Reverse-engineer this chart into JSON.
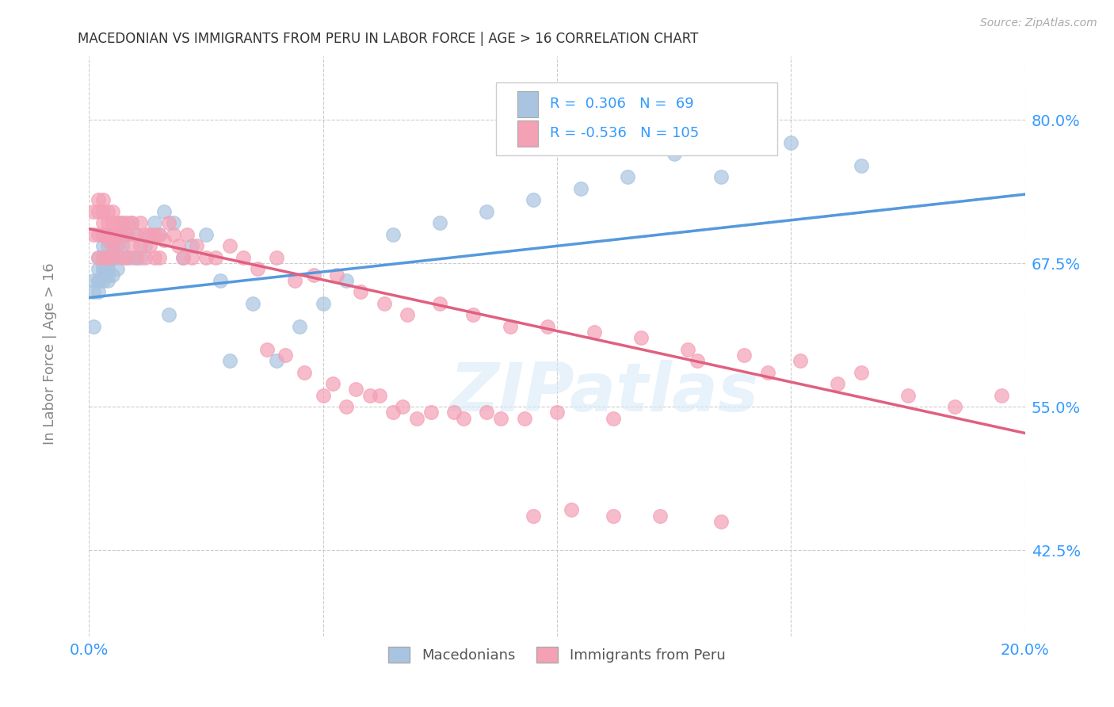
{
  "title": "MACEDONIAN VS IMMIGRANTS FROM PERU IN LABOR FORCE | AGE > 16 CORRELATION CHART",
  "source": "Source: ZipAtlas.com",
  "ylabel": "In Labor Force | Age > 16",
  "xlim": [
    0.0,
    0.2
  ],
  "ylim": [
    0.35,
    0.855
  ],
  "yticks": [
    0.425,
    0.55,
    0.675,
    0.8
  ],
  "ytick_labels": [
    "42.5%",
    "55.0%",
    "67.5%",
    "80.0%"
  ],
  "xticks": [
    0.0,
    0.05,
    0.1,
    0.15,
    0.2
  ],
  "xtick_labels": [
    "0.0%",
    "",
    "",
    "",
    "20.0%"
  ],
  "blue_R": 0.306,
  "blue_N": 69,
  "pink_R": -0.536,
  "pink_N": 105,
  "blue_color": "#a8c4e0",
  "pink_color": "#f4a0b5",
  "blue_line_color": "#5599dd",
  "pink_line_color": "#e06080",
  "watermark": "ZIPatlas",
  "blue_line_x0": 0.0,
  "blue_line_x1": 0.2,
  "blue_line_y0": 0.645,
  "blue_line_y1": 0.735,
  "pink_line_x0": 0.0,
  "pink_line_x1": 0.2,
  "pink_line_y0": 0.705,
  "pink_line_y1": 0.527,
  "blue_scatter_x": [
    0.001,
    0.001,
    0.001,
    0.002,
    0.002,
    0.002,
    0.002,
    0.002,
    0.003,
    0.003,
    0.003,
    0.003,
    0.003,
    0.003,
    0.003,
    0.003,
    0.004,
    0.004,
    0.004,
    0.004,
    0.004,
    0.004,
    0.004,
    0.005,
    0.005,
    0.005,
    0.005,
    0.005,
    0.006,
    0.006,
    0.006,
    0.006,
    0.007,
    0.007,
    0.007,
    0.008,
    0.008,
    0.009,
    0.009,
    0.01,
    0.01,
    0.011,
    0.012,
    0.013,
    0.014,
    0.015,
    0.016,
    0.017,
    0.018,
    0.02,
    0.022,
    0.025,
    0.028,
    0.03,
    0.035,
    0.04,
    0.045,
    0.05,
    0.055,
    0.065,
    0.075,
    0.085,
    0.095,
    0.105,
    0.115,
    0.125,
    0.135,
    0.15,
    0.165
  ],
  "blue_scatter_y": [
    0.65,
    0.66,
    0.62,
    0.66,
    0.67,
    0.66,
    0.68,
    0.65,
    0.665,
    0.67,
    0.68,
    0.69,
    0.66,
    0.67,
    0.68,
    0.7,
    0.66,
    0.67,
    0.68,
    0.69,
    0.7,
    0.665,
    0.675,
    0.665,
    0.68,
    0.69,
    0.7,
    0.68,
    0.67,
    0.68,
    0.69,
    0.7,
    0.69,
    0.7,
    0.71,
    0.68,
    0.7,
    0.68,
    0.71,
    0.68,
    0.7,
    0.68,
    0.69,
    0.7,
    0.71,
    0.7,
    0.72,
    0.63,
    0.71,
    0.68,
    0.69,
    0.7,
    0.66,
    0.59,
    0.64,
    0.59,
    0.62,
    0.64,
    0.66,
    0.7,
    0.71,
    0.72,
    0.73,
    0.74,
    0.75,
    0.77,
    0.75,
    0.78,
    0.76
  ],
  "pink_scatter_x": [
    0.001,
    0.001,
    0.002,
    0.002,
    0.002,
    0.002,
    0.003,
    0.003,
    0.003,
    0.003,
    0.003,
    0.004,
    0.004,
    0.004,
    0.004,
    0.004,
    0.005,
    0.005,
    0.005,
    0.005,
    0.005,
    0.006,
    0.006,
    0.006,
    0.007,
    0.007,
    0.007,
    0.008,
    0.008,
    0.008,
    0.009,
    0.009,
    0.01,
    0.01,
    0.011,
    0.011,
    0.012,
    0.012,
    0.013,
    0.013,
    0.014,
    0.014,
    0.015,
    0.015,
    0.016,
    0.017,
    0.018,
    0.019,
    0.02,
    0.021,
    0.022,
    0.023,
    0.025,
    0.027,
    0.03,
    0.033,
    0.036,
    0.04,
    0.044,
    0.048,
    0.053,
    0.058,
    0.063,
    0.068,
    0.075,
    0.082,
    0.09,
    0.098,
    0.108,
    0.118,
    0.128,
    0.14,
    0.152,
    0.165,
    0.13,
    0.145,
    0.16,
    0.175,
    0.185,
    0.195,
    0.05,
    0.055,
    0.06,
    0.065,
    0.07,
    0.078,
    0.085,
    0.093,
    0.1,
    0.112,
    0.038,
    0.042,
    0.046,
    0.052,
    0.057,
    0.062,
    0.067,
    0.073,
    0.08,
    0.088,
    0.095,
    0.103,
    0.112,
    0.122,
    0.135
  ],
  "pink_scatter_y": [
    0.7,
    0.72,
    0.68,
    0.7,
    0.72,
    0.73,
    0.68,
    0.7,
    0.72,
    0.71,
    0.73,
    0.68,
    0.695,
    0.71,
    0.72,
    0.7,
    0.68,
    0.7,
    0.71,
    0.72,
    0.69,
    0.69,
    0.7,
    0.71,
    0.68,
    0.7,
    0.71,
    0.68,
    0.7,
    0.71,
    0.69,
    0.71,
    0.68,
    0.7,
    0.69,
    0.71,
    0.68,
    0.7,
    0.69,
    0.7,
    0.68,
    0.7,
    0.68,
    0.7,
    0.695,
    0.71,
    0.7,
    0.69,
    0.68,
    0.7,
    0.68,
    0.69,
    0.68,
    0.68,
    0.69,
    0.68,
    0.67,
    0.68,
    0.66,
    0.665,
    0.665,
    0.65,
    0.64,
    0.63,
    0.64,
    0.63,
    0.62,
    0.62,
    0.615,
    0.61,
    0.6,
    0.595,
    0.59,
    0.58,
    0.59,
    0.58,
    0.57,
    0.56,
    0.55,
    0.56,
    0.56,
    0.55,
    0.56,
    0.545,
    0.54,
    0.545,
    0.545,
    0.54,
    0.545,
    0.54,
    0.6,
    0.595,
    0.58,
    0.57,
    0.565,
    0.56,
    0.55,
    0.545,
    0.54,
    0.54,
    0.455,
    0.46,
    0.455,
    0.455,
    0.45
  ]
}
